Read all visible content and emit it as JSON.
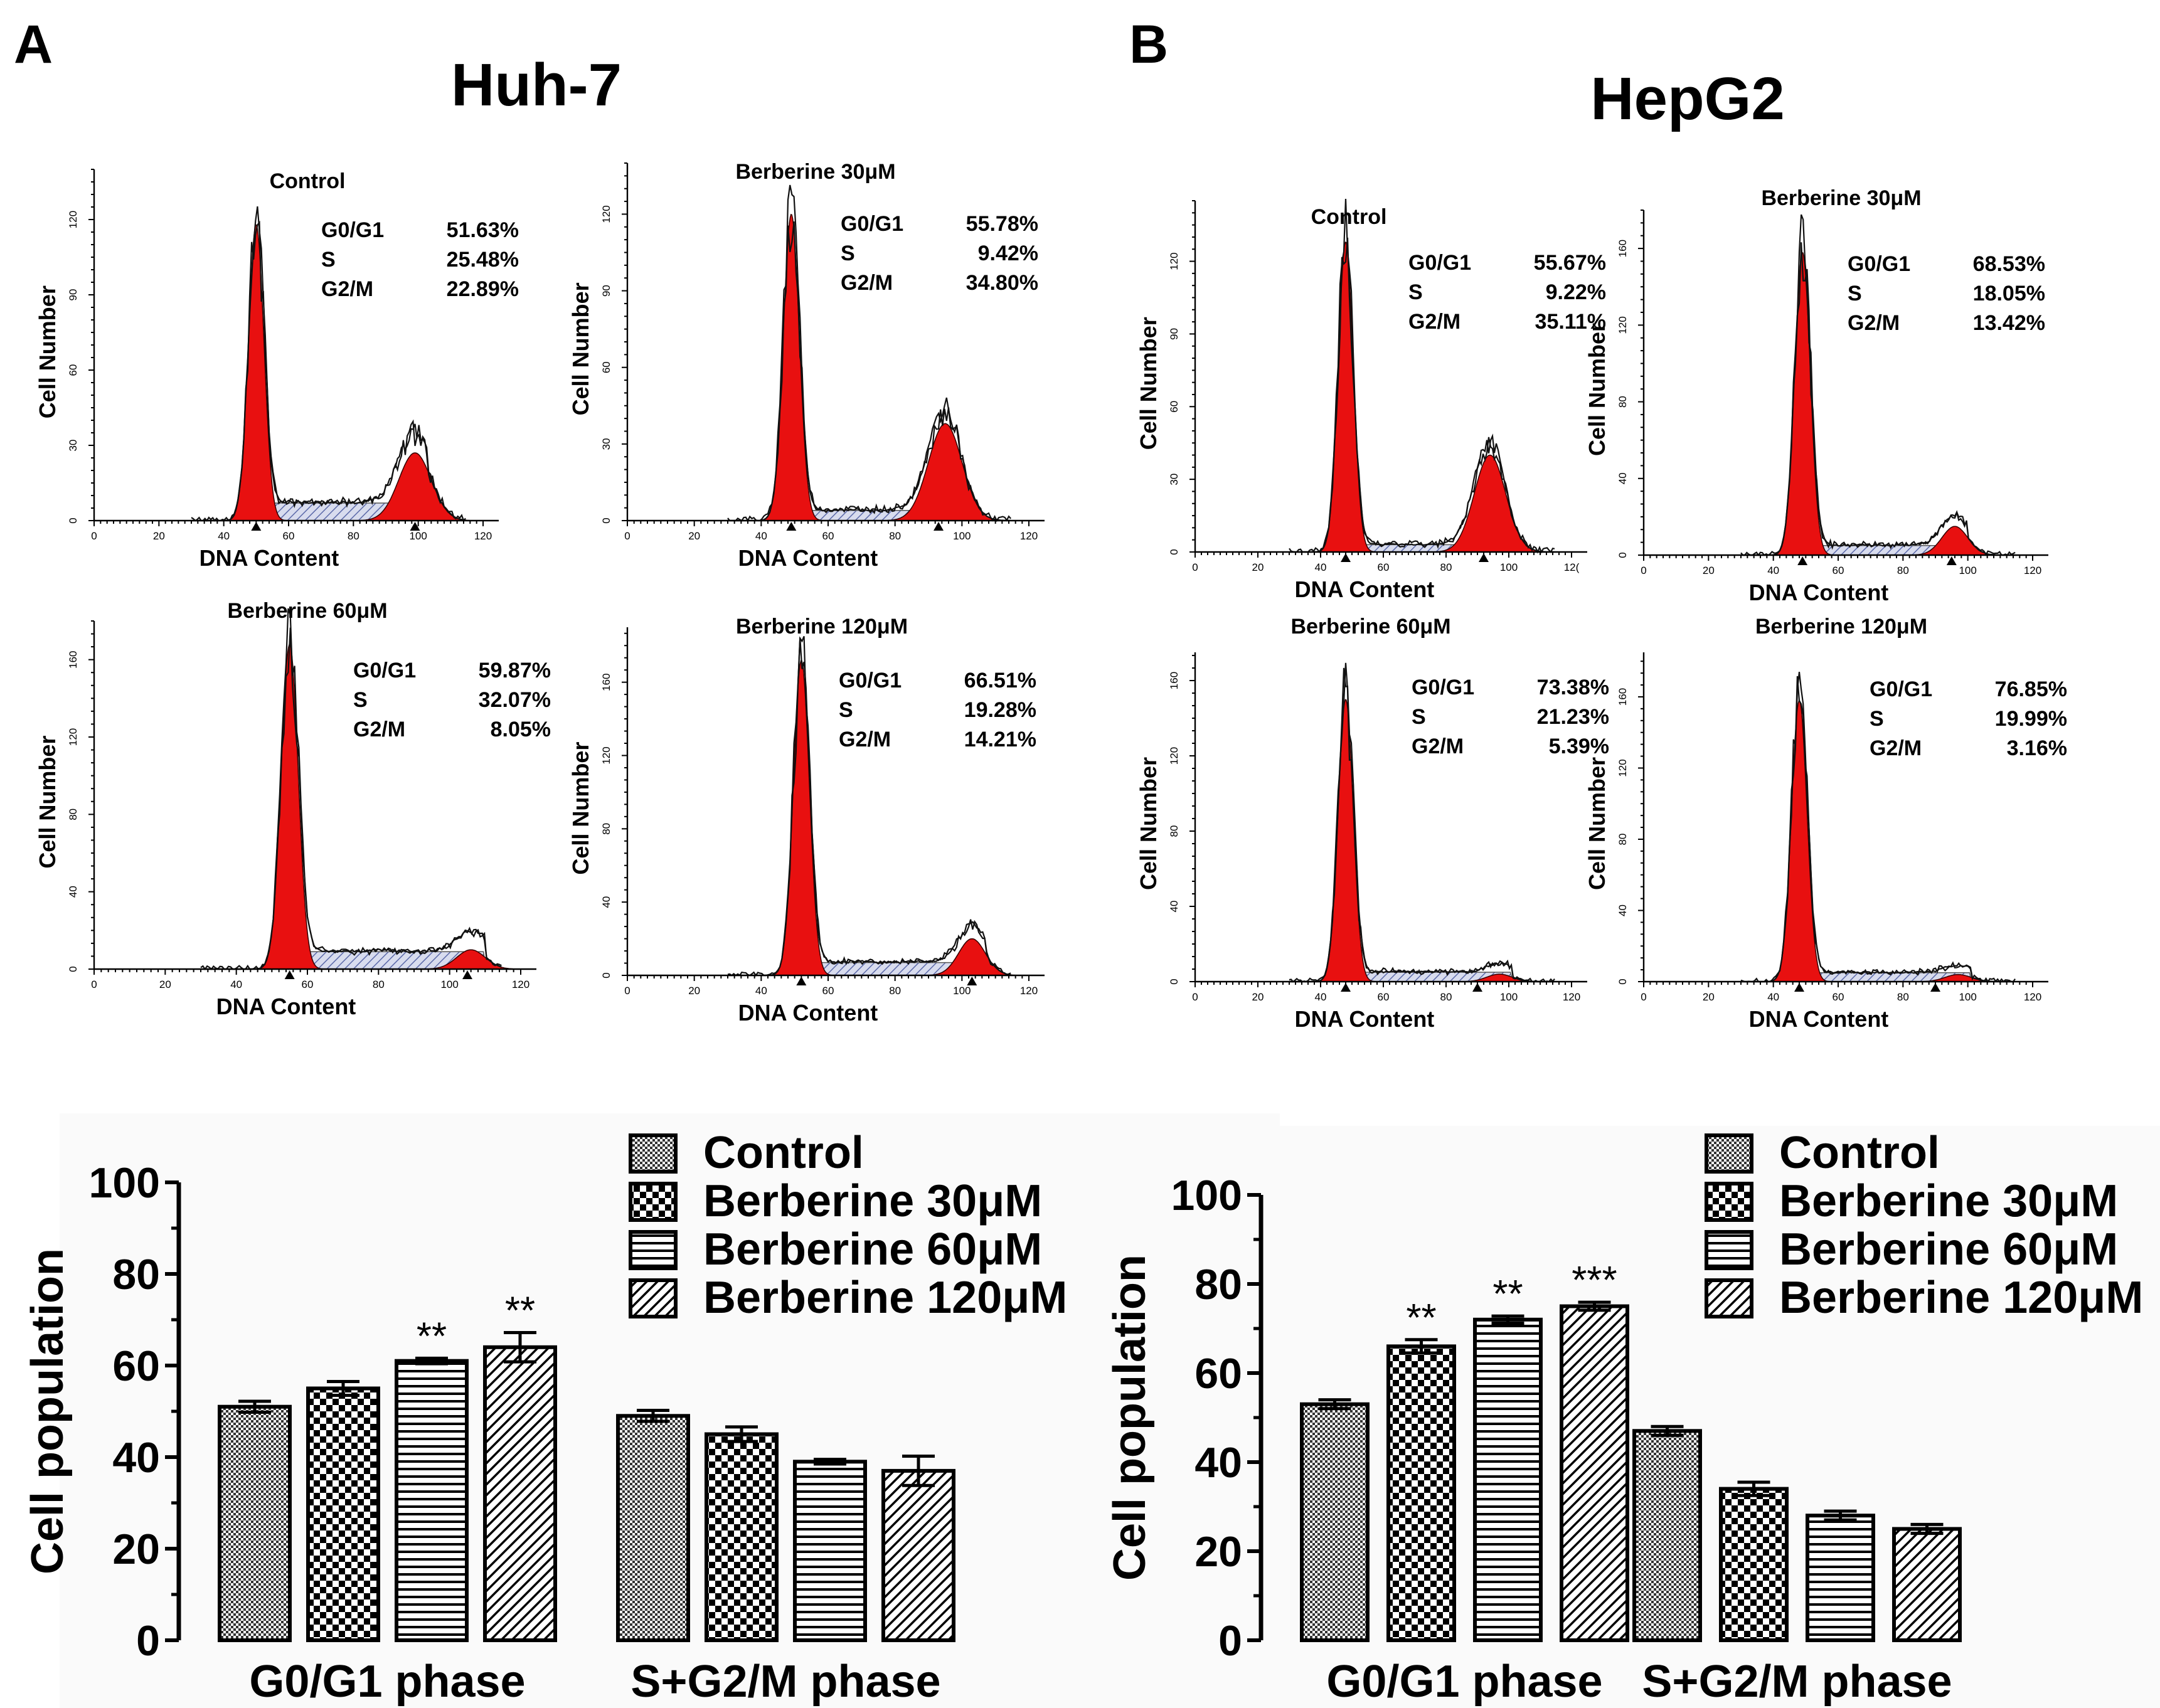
{
  "panels": [
    {
      "label": "A",
      "cell_line": "Huh-7",
      "histograms": [
        {
          "title": "Control",
          "rows": [
            [
              "G0/G1",
              "51.63%"
            ],
            [
              "S",
              "25.48%"
            ],
            [
              "G2/M",
              "22.89%"
            ]
          ],
          "xlabel": "DNA Content",
          "ylabel": "Cell Number",
          "xticks": [
            "0",
            "20",
            "40",
            "60",
            "80",
            "100",
            "120"
          ],
          "xmax": 120,
          "yticks": [
            "0",
            "30",
            "60",
            "90",
            "120"
          ],
          "ymax": 140,
          "g1": {
            "pos": 50,
            "peak": 118,
            "width": 2.4
          },
          "g2": {
            "pos": 99,
            "peak": 27,
            "width": 5
          },
          "s_level": 7,
          "markers": [
            50,
            99
          ]
        },
        {
          "title": "Berberine 30μM",
          "rows": [
            [
              "G0/G1",
              "55.78%"
            ],
            [
              "S",
              "9.42%"
            ],
            [
              "G2/M",
              "34.80%"
            ]
          ],
          "xlabel": "DNA Content",
          "ylabel": "Cell Number",
          "xticks": [
            "0",
            "20",
            "40",
            "60",
            "80",
            "100",
            "120"
          ],
          "xmax": 120,
          "yticks": [
            "0",
            "30",
            "60",
            "90",
            "120"
          ],
          "ymax": 140,
          "g1": {
            "pos": 49,
            "peak": 120,
            "width": 2.4
          },
          "g2": {
            "pos": 95,
            "peak": 38,
            "width": 5
          },
          "s_level": 4,
          "markers": [
            49,
            93
          ]
        },
        {
          "title": "Berberine 60μM",
          "rows": [
            [
              "G0/G1",
              "59.87%"
            ],
            [
              "S",
              "32.07%"
            ],
            [
              "G2/M",
              "8.05%"
            ]
          ],
          "xlabel": "DNA Content",
          "ylabel": "Cell Number",
          "xticks": [
            "0",
            "20",
            "40",
            "60",
            "80",
            "100",
            "120"
          ],
          "xmax": 120,
          "yticks": [
            "0",
            "40",
            "80",
            "120",
            "160"
          ],
          "ymax": 180,
          "g1": {
            "pos": 55,
            "peak": 168,
            "width": 2.4
          },
          "g2": {
            "pos": 106,
            "peak": 10,
            "width": 4
          },
          "s_level": 9,
          "markers": [
            55,
            105
          ]
        },
        {
          "title": "Berberine 120μM",
          "rows": [
            [
              "G0/G1",
              "66.51%"
            ],
            [
              "S",
              "19.28%"
            ],
            [
              "G2/M",
              "14.21%"
            ]
          ],
          "xlabel": "DNA Content",
          "ylabel": "Cell Number",
          "xticks": [
            "0",
            "20",
            "40",
            "60",
            "80",
            "100",
            "120"
          ],
          "xmax": 120,
          "yticks": [
            "0",
            "40",
            "80",
            "120",
            "160"
          ],
          "ymax": 190,
          "g1": {
            "pos": 52,
            "peak": 172,
            "width": 2.4
          },
          "g2": {
            "pos": 103,
            "peak": 20,
            "width": 4
          },
          "s_level": 7,
          "markers": [
            52,
            103
          ]
        }
      ],
      "bar_chart": {
        "ylabel": "Cell population",
        "categories": [
          "G0/G1 phase",
          "S+G2/M phase"
        ],
        "yticks": [
          "0",
          "20",
          "40",
          "60",
          "80",
          "100"
        ],
        "ylim": [
          0,
          100
        ],
        "legend": [
          "Control",
          "Berberine 30μM",
          "Berberine 60μM",
          "Berberine 120μM"
        ],
        "series": [
          {
            "name": "Control",
            "values": [
              51,
              49
            ],
            "errors": [
              1.2,
              1.2
            ],
            "sig": [
              "",
              ""
            ]
          },
          {
            "name": "Berberine 30μM",
            "values": [
              55,
              45
            ],
            "errors": [
              1.5,
              1.6
            ],
            "sig": [
              "",
              ""
            ]
          },
          {
            "name": "Berberine 60μM",
            "values": [
              61,
              39
            ],
            "errors": [
              0.6,
              0.5
            ],
            "sig": [
              "**",
              ""
            ]
          },
          {
            "name": "Berberine 120μM",
            "values": [
              64,
              37
            ],
            "errors": [
              3.2,
              3.2
            ],
            "sig": [
              "**",
              ""
            ]
          }
        ]
      }
    },
    {
      "label": "B",
      "cell_line": "HepG2",
      "histograms": [
        {
          "title": "Control",
          "rows": [
            [
              "G0/G1",
              "55.67%"
            ],
            [
              "S",
              "9.22%"
            ],
            [
              "G2/M",
              "35.11%"
            ]
          ],
          "xlabel": "DNA Content",
          "ylabel": "Cell Number",
          "xticks": [
            "0",
            "20",
            "40",
            "60",
            "80",
            "100",
            "12("
          ],
          "xmax": 120,
          "yticks": [
            "0",
            "30",
            "60",
            "90",
            "120"
          ],
          "ymax": 145,
          "g1": {
            "pos": 48,
            "peak": 128,
            "width": 2.4
          },
          "g2": {
            "pos": 94,
            "peak": 40,
            "width": 5
          },
          "s_level": 3,
          "markers": [
            48,
            92
          ]
        },
        {
          "title": "Berberine 30μM",
          "rows": [
            [
              "G0/G1",
              "68.53%"
            ],
            [
              "S",
              "18.05%"
            ],
            [
              "G2/M",
              "13.42%"
            ]
          ],
          "xlabel": "DNA Content",
          "ylabel": "Cell Number",
          "xticks": [
            "0",
            "20",
            "40",
            "60",
            "80",
            "100",
            "120"
          ],
          "xmax": 120,
          "yticks": [
            "0",
            "40",
            "80",
            "120",
            "160"
          ],
          "ymax": 180,
          "g1": {
            "pos": 49,
            "peak": 158,
            "width": 2.4
          },
          "g2": {
            "pos": 96,
            "peak": 15,
            "width": 4
          },
          "s_level": 5,
          "markers": [
            49,
            95
          ]
        },
        {
          "title": "Berberine 60μM",
          "rows": [
            [
              "G0/G1",
              "73.38%"
            ],
            [
              "S",
              "21.23%"
            ],
            [
              "G2/M",
              "5.39%"
            ]
          ],
          "xlabel": "DNA Content",
          "ylabel": "Cell Number",
          "xticks": [
            "0",
            "20",
            "40",
            "60",
            "80",
            "100",
            "120"
          ],
          "xmax": 120,
          "yticks": [
            "0",
            "40",
            "80",
            "120",
            "160"
          ],
          "ymax": 175,
          "g1": {
            "pos": 48,
            "peak": 150,
            "width": 2.4
          },
          "g2": {
            "pos": 97,
            "peak": 4,
            "width": 4
          },
          "s_level": 5,
          "markers": [
            48,
            90
          ]
        },
        {
          "title": "Berberine 120μM",
          "rows": [
            [
              "G0/G1",
              "76.85%"
            ],
            [
              "S",
              "19.99%"
            ],
            [
              "G2/M",
              "3.16%"
            ]
          ],
          "xlabel": "DNA Content",
          "ylabel": "Cell Number",
          "xticks": [
            "0",
            "20",
            "40",
            "60",
            "80",
            "100",
            "120"
          ],
          "xmax": 120,
          "yticks": [
            "0",
            "40",
            "80",
            "120",
            "160"
          ],
          "ymax": 185,
          "g1": {
            "pos": 48,
            "peak": 158,
            "width": 2.4
          },
          "g2": {
            "pos": 97,
            "peak": 4,
            "width": 4
          },
          "s_level": 5,
          "markers": [
            48,
            90
          ]
        }
      ],
      "bar_chart": {
        "ylabel": "Cell population",
        "categories": [
          "G0/G1 phase",
          "S+G2/M phase"
        ],
        "yticks": [
          "0",
          "20",
          "40",
          "60",
          "80",
          "100"
        ],
        "ylim": [
          0,
          100
        ],
        "legend": [
          "Control",
          "Berberine 30μM",
          "Berberine 60μM",
          "Berberine 120μM"
        ],
        "series": [
          {
            "name": "Control",
            "values": [
              53,
              47
            ],
            "errors": [
              1,
              1
            ],
            "sig": [
              "",
              ""
            ]
          },
          {
            "name": "Berberine 30μM",
            "values": [
              66,
              34
            ],
            "errors": [
              1.5,
              1.5
            ],
            "sig": [
              "**",
              ""
            ]
          },
          {
            "name": "Berberine 60μM",
            "values": [
              72,
              28
            ],
            "errors": [
              0.8,
              1
            ],
            "sig": [
              "**",
              ""
            ]
          },
          {
            "name": "Berberine 120μM",
            "values": [
              75,
              25
            ],
            "errors": [
              0.9,
              1
            ],
            "sig": [
              "***",
              ""
            ]
          }
        ]
      }
    }
  ],
  "chart_data": [
    {
      "type": "bar",
      "title": "Huh-7",
      "categories": [
        "G0/G1 phase",
        "S+G2/M phase"
      ],
      "series": [
        {
          "name": "Control",
          "values": [
            51,
            49
          ]
        },
        {
          "name": "Berberine 30μM",
          "values": [
            55,
            45
          ]
        },
        {
          "name": "Berberine 60μM",
          "values": [
            61,
            39
          ]
        },
        {
          "name": "Berberine 120μM",
          "values": [
            64,
            37
          ]
        }
      ],
      "xlabel": "",
      "ylabel": "Cell population",
      "ylim": [
        0,
        100
      ]
    },
    {
      "type": "bar",
      "title": "HepG2",
      "categories": [
        "G0/G1 phase",
        "S+G2/M phase"
      ],
      "series": [
        {
          "name": "Control",
          "values": [
            53,
            47
          ]
        },
        {
          "name": "Berberine 30μM",
          "values": [
            66,
            34
          ]
        },
        {
          "name": "Berberine 60μM",
          "values": [
            72,
            28
          ]
        },
        {
          "name": "Berberine 120μM",
          "values": [
            75,
            25
          ]
        }
      ],
      "xlabel": "",
      "ylabel": "Cell population",
      "ylim": [
        0,
        100
      ]
    }
  ],
  "colors": {
    "peak_fill": "#e81010",
    "s_phase_fill": "#c8cfe6",
    "bar_fill": "#ffffff",
    "ink": "#000000"
  }
}
